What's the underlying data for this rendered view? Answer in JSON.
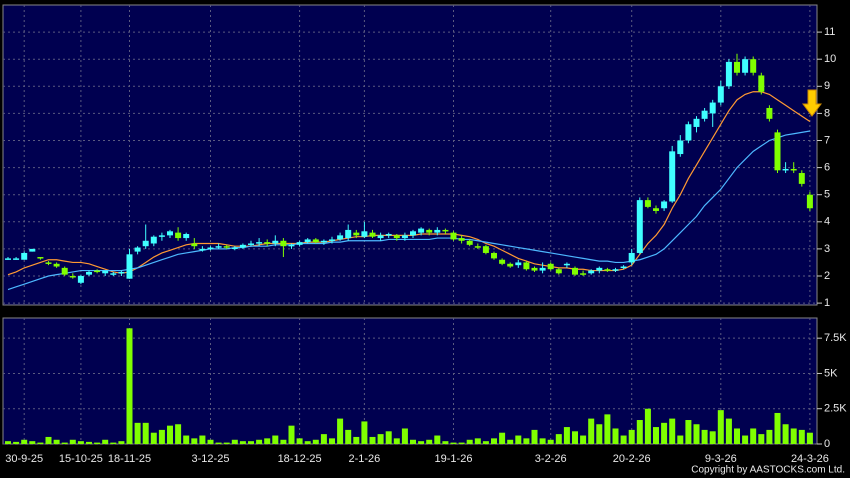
{
  "chart_data": [
    {
      "type": "candlestick",
      "categories": [
        null,
        null,
        "30-9-25",
        null,
        null,
        null,
        null,
        null,
        null,
        "15-10-25",
        null,
        null,
        null,
        null,
        null,
        "18-11-25",
        null,
        null,
        null,
        null,
        null,
        null,
        null,
        null,
        null,
        "3-12-25",
        null,
        null,
        null,
        null,
        null,
        null,
        null,
        null,
        null,
        null,
        "18-12-25",
        null,
        null,
        null,
        null,
        null,
        null,
        null,
        "2-1-26",
        null,
        null,
        null,
        null,
        null,
        null,
        null,
        null,
        null,
        null,
        "19-1-26",
        null,
        null,
        null,
        null,
        null,
        null,
        null,
        null,
        null,
        null,
        null,
        "3-2-26",
        null,
        null,
        null,
        null,
        null,
        null,
        null,
        null,
        null,
        "20-2-26",
        null,
        null,
        null,
        null,
        null,
        null,
        null,
        null,
        null,
        null,
        "9-3-26",
        null,
        null,
        null,
        null,
        null,
        null,
        null,
        null,
        null,
        null,
        "24-3-26"
      ],
      "open": [
        2.65,
        2.65,
        2.6,
        2.9,
        2.7,
        2.5,
        2.45,
        2.3,
        2.0,
        1.75,
        2.05,
        2.2,
        2.1,
        2.1,
        2.1,
        1.9,
        2.9,
        3.1,
        3.2,
        3.45,
        3.5,
        3.6,
        3.4,
        3.2,
        3.0,
        3.0,
        3.05,
        3.1,
        3.0,
        3.05,
        3.15,
        3.2,
        3.25,
        3.2,
        3.3,
        3.1,
        3.15,
        3.25,
        3.35,
        3.25,
        3.3,
        3.35,
        3.4,
        3.6,
        3.45,
        3.6,
        3.4,
        3.5,
        3.5,
        3.4,
        3.5,
        3.6,
        3.7,
        3.6,
        3.7,
        3.6,
        3.4,
        3.3,
        3.1,
        3.1,
        2.85,
        2.6,
        2.45,
        2.4,
        2.5,
        2.3,
        2.2,
        2.45,
        2.25,
        2.4,
        2.3,
        2.1,
        2.1,
        2.2,
        2.25,
        2.2,
        2.3,
        2.5,
        2.85,
        4.8,
        4.5,
        4.5,
        4.75,
        6.5,
        7.0,
        7.5,
        7.8,
        8.0,
        8.4,
        9.0,
        9.9,
        9.5,
        10.0,
        9.4,
        8.2,
        7.3,
        5.9,
        5.95,
        5.8,
        5.0
      ],
      "high": [
        2.7,
        2.7,
        2.9,
        3.0,
        2.7,
        2.55,
        2.5,
        2.35,
        2.1,
        2.05,
        2.2,
        2.25,
        2.2,
        2.15,
        2.2,
        3.0,
        3.1,
        3.9,
        3.5,
        3.6,
        3.7,
        3.8,
        3.6,
        3.4,
        3.1,
        3.1,
        3.2,
        3.15,
        3.1,
        3.2,
        3.3,
        3.4,
        3.35,
        3.5,
        3.4,
        3.2,
        3.3,
        3.4,
        3.4,
        3.35,
        3.45,
        3.6,
        3.9,
        3.7,
        4.0,
        3.7,
        3.6,
        3.6,
        3.55,
        3.6,
        3.7,
        3.8,
        3.75,
        3.8,
        3.75,
        3.65,
        3.5,
        3.35,
        3.2,
        3.15,
        2.9,
        2.65,
        2.5,
        2.6,
        2.55,
        2.35,
        2.5,
        2.5,
        2.3,
        2.5,
        2.35,
        2.2,
        2.25,
        2.35,
        2.3,
        2.3,
        2.4,
        3.0,
        4.9,
        4.9,
        4.6,
        4.8,
        6.8,
        7.2,
        7.7,
        7.9,
        8.2,
        8.5,
        9.2,
        10.0,
        10.2,
        10.1,
        10.1,
        9.5,
        8.3,
        7.4,
        6.2,
        6.2,
        5.9,
        5.1
      ],
      "low": [
        2.6,
        2.6,
        2.6,
        2.9,
        2.6,
        2.4,
        2.3,
        2.0,
        1.9,
        1.7,
        2.0,
        2.1,
        2.0,
        2.0,
        2.0,
        1.9,
        2.8,
        3.0,
        3.1,
        3.3,
        3.4,
        3.3,
        3.3,
        3.0,
        2.9,
        2.95,
        3.0,
        3.0,
        2.95,
        3.0,
        3.1,
        3.1,
        3.1,
        3.1,
        2.7,
        3.0,
        3.1,
        3.2,
        3.2,
        3.15,
        3.2,
        3.3,
        3.3,
        3.4,
        3.4,
        3.4,
        3.3,
        3.4,
        3.3,
        3.3,
        3.4,
        3.5,
        3.5,
        3.5,
        3.55,
        3.3,
        3.2,
        3.1,
        3.0,
        2.8,
        2.6,
        2.4,
        2.3,
        2.3,
        2.2,
        2.15,
        2.1,
        2.2,
        2.05,
        2.3,
        2.0,
        2.0,
        2.05,
        2.1,
        2.15,
        2.15,
        2.25,
        2.4,
        2.8,
        4.5,
        4.3,
        4.4,
        4.7,
        6.4,
        6.9,
        7.3,
        7.7,
        7.5,
        8.3,
        8.9,
        9.4,
        9.4,
        9.4,
        8.7,
        7.7,
        5.8,
        5.8,
        5.8,
        5.3,
        4.4
      ],
      "close": [
        2.65,
        2.65,
        2.85,
        3.0,
        2.65,
        2.45,
        2.35,
        2.05,
        1.95,
        2.0,
        2.15,
        2.15,
        2.2,
        2.1,
        2.15,
        2.8,
        3.05,
        3.3,
        3.45,
        3.5,
        3.65,
        3.4,
        3.55,
        3.1,
        3.0,
        3.05,
        3.1,
        3.05,
        3.05,
        3.15,
        3.2,
        3.25,
        3.2,
        3.3,
        3.1,
        3.15,
        3.25,
        3.35,
        3.25,
        3.3,
        3.35,
        3.5,
        3.7,
        3.5,
        3.65,
        3.45,
        3.5,
        3.55,
        3.4,
        3.5,
        3.65,
        3.75,
        3.6,
        3.7,
        3.65,
        3.35,
        3.3,
        3.15,
        3.05,
        2.85,
        2.65,
        2.45,
        2.35,
        2.5,
        2.25,
        2.2,
        2.3,
        2.25,
        2.1,
        2.45,
        2.05,
        2.05,
        2.2,
        2.3,
        2.2,
        2.25,
        2.35,
        2.85,
        4.8,
        4.55,
        4.4,
        4.75,
        6.6,
        7.0,
        7.6,
        7.8,
        8.1,
        8.4,
        9.0,
        9.9,
        9.5,
        10.0,
        9.5,
        8.8,
        7.8,
        5.9,
        5.95,
        5.9,
        5.4,
        4.5
      ],
      "up_color": "#40ffff",
      "down_color": "#80ff00",
      "series": [
        {
          "color": "#ff9933",
          "values": [
            2.05,
            2.15,
            2.3,
            2.4,
            2.5,
            2.6,
            2.6,
            2.55,
            2.5,
            2.5,
            2.45,
            2.35,
            2.25,
            2.15,
            2.1,
            2.15,
            2.3,
            2.5,
            2.7,
            2.85,
            2.95,
            3.05,
            3.15,
            3.2,
            3.2,
            3.2,
            3.2,
            3.15,
            3.1,
            3.1,
            3.1,
            3.15,
            3.2,
            3.2,
            3.2,
            3.2,
            3.2,
            3.25,
            3.25,
            3.25,
            3.3,
            3.35,
            3.4,
            3.45,
            3.45,
            3.5,
            3.5,
            3.5,
            3.5,
            3.5,
            3.5,
            3.55,
            3.55,
            3.55,
            3.55,
            3.55,
            3.5,
            3.45,
            3.35,
            3.2,
            3.1,
            2.95,
            2.8,
            2.65,
            2.55,
            2.45,
            2.4,
            2.35,
            2.3,
            2.3,
            2.25,
            2.25,
            2.2,
            2.2,
            2.2,
            2.2,
            2.25,
            2.4,
            2.8,
            3.2,
            3.5,
            3.9,
            4.5,
            5.0,
            5.6,
            6.1,
            6.6,
            7.1,
            7.6,
            8.1,
            8.5,
            8.7,
            8.8,
            8.8,
            8.7,
            8.5,
            8.3,
            8.1,
            7.9,
            7.7
          ]
        },
        {
          "color": "#4db8ff",
          "values": [
            1.5,
            1.6,
            1.7,
            1.8,
            1.9,
            2.0,
            2.05,
            2.1,
            2.15,
            2.2,
            2.2,
            2.2,
            2.2,
            2.2,
            2.2,
            2.25,
            2.3,
            2.4,
            2.5,
            2.6,
            2.7,
            2.8,
            2.85,
            2.9,
            2.95,
            3.0,
            3.0,
            3.0,
            3.05,
            3.05,
            3.1,
            3.1,
            3.1,
            3.15,
            3.15,
            3.15,
            3.2,
            3.2,
            3.2,
            3.2,
            3.25,
            3.25,
            3.3,
            3.3,
            3.3,
            3.3,
            3.3,
            3.35,
            3.35,
            3.35,
            3.35,
            3.35,
            3.35,
            3.4,
            3.4,
            3.4,
            3.35,
            3.35,
            3.3,
            3.25,
            3.2,
            3.15,
            3.1,
            3.05,
            3.0,
            2.95,
            2.9,
            2.85,
            2.8,
            2.75,
            2.7,
            2.65,
            2.6,
            2.55,
            2.55,
            2.5,
            2.5,
            2.55,
            2.6,
            2.7,
            2.8,
            3.0,
            3.3,
            3.6,
            3.9,
            4.2,
            4.6,
            4.9,
            5.2,
            5.6,
            6.0,
            6.3,
            6.6,
            6.8,
            7.0,
            7.1,
            7.2,
            7.25,
            7.3,
            7.35
          ]
        }
      ],
      "ylim": [
        0.93,
        12.0
      ],
      "yticks": [
        1,
        2,
        3,
        4,
        5,
        6,
        7,
        8,
        9,
        10,
        11
      ],
      "grid": true
    },
    {
      "type": "bar",
      "color": "#80ff00",
      "values": [
        200,
        150,
        300,
        200,
        100,
        500,
        300,
        100,
        300,
        200,
        150,
        100,
        300,
        100,
        200,
        8200,
        1500,
        1500,
        800,
        1000,
        1300,
        1400,
        600,
        400,
        600,
        300,
        100,
        100,
        300,
        200,
        200,
        300,
        400,
        600,
        300,
        1300,
        400,
        200,
        300,
        700,
        400,
        1800,
        1000,
        500,
        1600,
        500,
        700,
        900,
        400,
        1100,
        300,
        200,
        300,
        600,
        200,
        100,
        100,
        300,
        400,
        200,
        400,
        800,
        300,
        600,
        400,
        1000,
        400,
        300,
        700,
        1200,
        900,
        600,
        1800,
        1400,
        2100,
        1100,
        600,
        1000,
        1700,
        2500,
        1200,
        1500,
        1800,
        600,
        1700,
        1400,
        1000,
        900,
        2400,
        1800,
        1100,
        600,
        1100,
        700,
        1000,
        2200,
        1400,
        1100,
        1000,
        800
      ],
      "ylim": [
        0,
        8930
      ],
      "yticks": [
        0,
        {
          "value": 2500,
          "label": "2.5K"
        },
        {
          "value": 5000,
          "label": "5K"
        },
        {
          "value": 7500,
          "label": "7.5K"
        }
      ],
      "grid": true
    }
  ],
  "copyright": "Copyright by AASTOCKS.com Ltd."
}
